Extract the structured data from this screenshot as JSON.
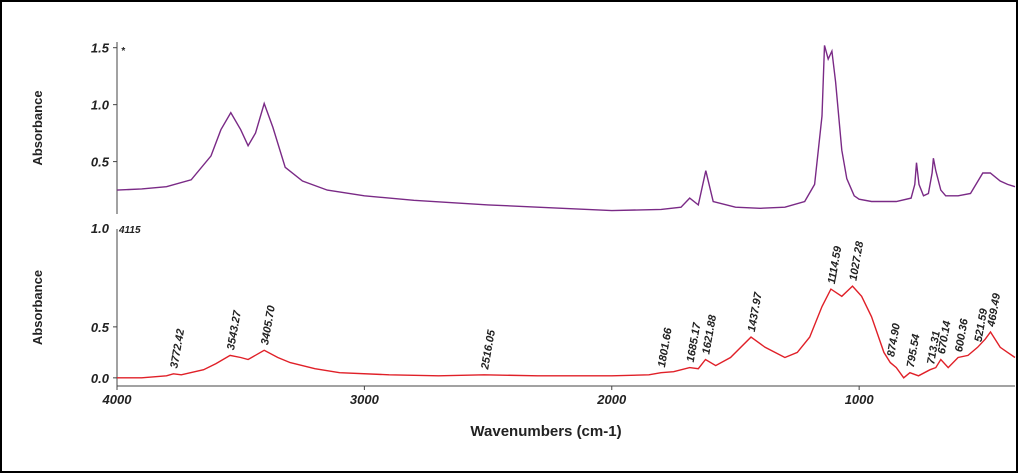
{
  "chart_data": [
    {
      "type": "line",
      "ylabel": "Absorbance",
      "marker": "*",
      "color": "#7a2a86",
      "xlim": [
        4000,
        370
      ],
      "ylim": [
        0.04,
        1.55
      ],
      "yticks": [
        {
          "value": 0.5,
          "label": "0.5"
        },
        {
          "value": 1.0,
          "label": "1.0"
        },
        {
          "value": 1.5,
          "label": "1.5"
        }
      ],
      "x": [
        4000,
        3900,
        3800,
        3700,
        3620,
        3580,
        3540,
        3500,
        3470,
        3440,
        3405,
        3370,
        3320,
        3250,
        3150,
        3000,
        2800,
        2500,
        2200,
        2000,
        1800,
        1720,
        1685,
        1650,
        1620,
        1590,
        1500,
        1400,
        1300,
        1220,
        1180,
        1150,
        1140,
        1125,
        1110,
        1095,
        1070,
        1050,
        1020,
        1000,
        950,
        850,
        790,
        775,
        768,
        758,
        740,
        720,
        705,
        700,
        690,
        670,
        650,
        600,
        550,
        500,
        470,
        430,
        400,
        370
      ],
      "values": [
        0.25,
        0.26,
        0.28,
        0.34,
        0.55,
        0.78,
        0.93,
        0.78,
        0.64,
        0.75,
        1.01,
        0.8,
        0.45,
        0.33,
        0.25,
        0.2,
        0.16,
        0.12,
        0.09,
        0.07,
        0.08,
        0.1,
        0.18,
        0.12,
        0.42,
        0.15,
        0.1,
        0.09,
        0.1,
        0.15,
        0.3,
        0.9,
        1.52,
        1.4,
        1.47,
        1.2,
        0.6,
        0.35,
        0.2,
        0.17,
        0.15,
        0.15,
        0.18,
        0.3,
        0.49,
        0.3,
        0.2,
        0.22,
        0.4,
        0.53,
        0.42,
        0.25,
        0.2,
        0.2,
        0.22,
        0.4,
        0.4,
        0.33,
        0.3,
        0.28
      ]
    },
    {
      "type": "line",
      "ylabel": "Absorbance",
      "xlabel": "Wavenumbers (cm-1)",
      "header_labels": [
        "1.0",
        "4115"
      ],
      "color": "#e02028",
      "xlim": [
        4000,
        370
      ],
      "ylim": [
        -0.08,
        1.46
      ],
      "xticks": [
        4000,
        3000,
        2000,
        1000
      ],
      "yticks": [
        {
          "value": 0.0,
          "label": "0.0"
        },
        {
          "value": 0.5,
          "label": "0.5"
        }
      ],
      "x": [
        4000,
        3900,
        3800,
        3772,
        3740,
        3650,
        3600,
        3543,
        3500,
        3470,
        3405,
        3350,
        3300,
        3200,
        3100,
        2900,
        2700,
        2516,
        2300,
        2000,
        1850,
        1801,
        1750,
        1685,
        1650,
        1621,
        1580,
        1520,
        1437,
        1380,
        1300,
        1250,
        1200,
        1150,
        1114,
        1070,
        1027,
        990,
        950,
        900,
        874,
        850,
        820,
        795,
        760,
        713,
        690,
        670,
        640,
        600,
        560,
        521,
        490,
        469,
        430,
        400,
        370
      ],
      "values": [
        0.0,
        0.0,
        0.02,
        0.04,
        0.03,
        0.08,
        0.14,
        0.22,
        0.2,
        0.18,
        0.27,
        0.2,
        0.15,
        0.09,
        0.05,
        0.03,
        0.02,
        0.03,
        0.02,
        0.02,
        0.03,
        0.05,
        0.06,
        0.1,
        0.09,
        0.18,
        0.12,
        0.2,
        0.4,
        0.3,
        0.2,
        0.25,
        0.4,
        0.7,
        0.87,
        0.8,
        0.9,
        0.8,
        0.6,
        0.25,
        0.15,
        0.1,
        0.0,
        0.05,
        0.02,
        0.08,
        0.1,
        0.18,
        0.1,
        0.2,
        0.22,
        0.3,
        0.38,
        0.45,
        0.3,
        0.25,
        0.2
      ],
      "peaks": [
        {
          "value": 3772.42,
          "label": "3772.42"
        },
        {
          "value": 3543.27,
          "label": "3543.27"
        },
        {
          "value": 3405.7,
          "label": "3405.70"
        },
        {
          "value": 2516.05,
          "label": "2516.05"
        },
        {
          "value": 1801.66,
          "label": "1801.66"
        },
        {
          "value": 1685.17,
          "label": "1685.17"
        },
        {
          "value": 1621.88,
          "label": "1621.88"
        },
        {
          "value": 1437.97,
          "label": "1437.97"
        },
        {
          "value": 1114.59,
          "label": "1114.59"
        },
        {
          "value": 1027.28,
          "label": "1027.28"
        },
        {
          "value": 874.9,
          "label": "874.90"
        },
        {
          "value": 795.54,
          "label": "795.54"
        },
        {
          "value": 713.31,
          "label": "713.31"
        },
        {
          "value": 670.14,
          "label": "670.14"
        },
        {
          "value": 600.36,
          "label": "600.36"
        },
        {
          "value": 521.59,
          "label": "521.59"
        },
        {
          "value": 469.49,
          "label": "469.49"
        }
      ]
    }
  ]
}
